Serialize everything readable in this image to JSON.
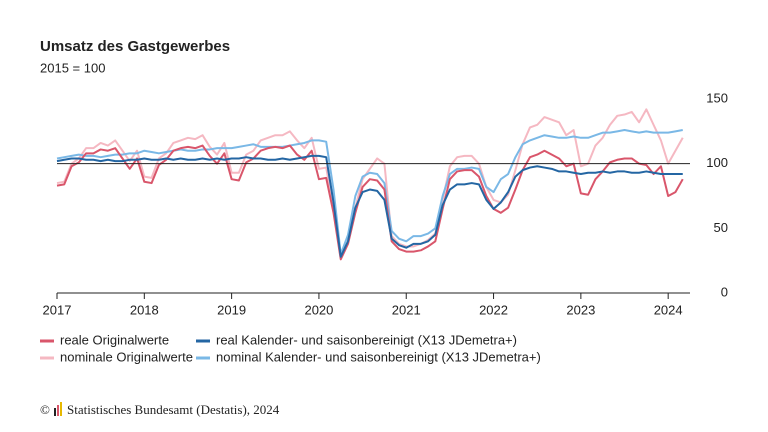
{
  "chart_data": {
    "type": "line",
    "title": "Umsatz des Gastgewerbes",
    "subtitle": "2015 = 100",
    "copyright": "©",
    "source": "Statistisches Bundesamt (Destatis), 2024",
    "xlim": [
      2017,
      2024.25
    ],
    "xticks": [
      2017,
      2018,
      2019,
      2020,
      2021,
      2022,
      2023,
      2024
    ],
    "ylim": [
      0,
      150
    ],
    "yticks": [
      0,
      50,
      100,
      150
    ],
    "reference_line": 100,
    "legend": "bottom",
    "x": [
      2017.0,
      2017.083,
      2017.167,
      2017.25,
      2017.333,
      2017.417,
      2017.5,
      2017.583,
      2017.667,
      2017.75,
      2017.833,
      2017.917,
      2018.0,
      2018.083,
      2018.167,
      2018.25,
      2018.333,
      2018.417,
      2018.5,
      2018.583,
      2018.667,
      2018.75,
      2018.833,
      2018.917,
      2019.0,
      2019.083,
      2019.167,
      2019.25,
      2019.333,
      2019.417,
      2019.5,
      2019.583,
      2019.667,
      2019.75,
      2019.833,
      2019.917,
      2020.0,
      2020.083,
      2020.167,
      2020.25,
      2020.333,
      2020.417,
      2020.5,
      2020.583,
      2020.667,
      2020.75,
      2020.833,
      2020.917,
      2021.0,
      2021.083,
      2021.167,
      2021.25,
      2021.333,
      2021.417,
      2021.5,
      2021.583,
      2021.667,
      2021.75,
      2021.833,
      2021.917,
      2022.0,
      2022.083,
      2022.167,
      2022.25,
      2022.333,
      2022.417,
      2022.5,
      2022.583,
      2022.667,
      2022.75,
      2022.833,
      2022.917,
      2023.0,
      2023.083,
      2023.167,
      2023.25,
      2023.333,
      2023.417,
      2023.5,
      2023.583,
      2023.667,
      2023.75,
      2023.833,
      2023.917,
      2024.0,
      2024.083,
      2024.167
    ],
    "series": [
      {
        "name": "nominale Originalwerte",
        "color": "#f5b8c2",
        "legend_row": 1,
        "legend_col": 0,
        "values": [
          85,
          86,
          100,
          104,
          112,
          112,
          116,
          114,
          118,
          110,
          102,
          110,
          90,
          89,
          104,
          108,
          116,
          118,
          120,
          119,
          122,
          113,
          107,
          116,
          93,
          93,
          107,
          110,
          118,
          120,
          122,
          122,
          125,
          118,
          112,
          120,
          96,
          97,
          66,
          27,
          40,
          66,
          88,
          96,
          104,
          100,
          44,
          38,
          36,
          36,
          38,
          41,
          46,
          72,
          98,
          105,
          106,
          106,
          100,
          82,
          72,
          70,
          76,
          95,
          115,
          128,
          130,
          136,
          134,
          132,
          122,
          126,
          98,
          100,
          114,
          120,
          130,
          137,
          138,
          140,
          132,
          142,
          130,
          118,
          100,
          110,
          120
        ]
      },
      {
        "name": "nominal Kalender- und saisonbereinigt (X13 JDemetra+)",
        "color": "#7ab8e6",
        "legend_row": 1,
        "legend_col": 1,
        "values": [
          104,
          105,
          106,
          107,
          106,
          106,
          105,
          106,
          107,
          107,
          108,
          108,
          110,
          109,
          108,
          109,
          110,
          111,
          110,
          110,
          111,
          111,
          112,
          112,
          112,
          113,
          114,
          115,
          113,
          113,
          113,
          113,
          114,
          115,
          116,
          118,
          118,
          117,
          80,
          30,
          45,
          75,
          90,
          93,
          92,
          85,
          48,
          42,
          40,
          44,
          44,
          46,
          50,
          75,
          92,
          96,
          96,
          97,
          96,
          82,
          78,
          88,
          92,
          105,
          115,
          118,
          120,
          122,
          121,
          120,
          120,
          121,
          120,
          120,
          122,
          124,
          124,
          125,
          126,
          125,
          124,
          125,
          124,
          124,
          124,
          125,
          126
        ]
      },
      {
        "name": "reale Originalwerte",
        "color": "#d9566b",
        "legend_row": 0,
        "legend_col": 0,
        "values": [
          83,
          84,
          98,
          101,
          108,
          108,
          111,
          110,
          112,
          104,
          96,
          104,
          86,
          85,
          99,
          103,
          110,
          112,
          113,
          112,
          114,
          106,
          100,
          108,
          88,
          87,
          101,
          104,
          110,
          112,
          113,
          112,
          114,
          107,
          103,
          110,
          88,
          89,
          62,
          26,
          38,
          62,
          82,
          88,
          87,
          80,
          40,
          34,
          32,
          32,
          33,
          36,
          40,
          65,
          88,
          94,
          95,
          95,
          90,
          75,
          65,
          62,
          66,
          80,
          95,
          105,
          107,
          110,
          107,
          104,
          98,
          100,
          77,
          76,
          88,
          94,
          101,
          103,
          104,
          104,
          100,
          99,
          92,
          98,
          75,
          78,
          88
        ]
      },
      {
        "name": "real Kalender- und saisonbereinigt (X13 JDemetra+)",
        "color": "#2466a3",
        "legend_row": 0,
        "legend_col": 1,
        "values": [
          102,
          103,
          104,
          104,
          103,
          103,
          102,
          103,
          102,
          102,
          103,
          103,
          104,
          103,
          103,
          104,
          103,
          104,
          103,
          103,
          104,
          103,
          104,
          103,
          104,
          104,
          105,
          104,
          104,
          103,
          103,
          104,
          103,
          104,
          105,
          106,
          106,
          105,
          70,
          28,
          40,
          66,
          78,
          80,
          79,
          72,
          42,
          37,
          35,
          38,
          38,
          40,
          45,
          68,
          80,
          84,
          84,
          85,
          84,
          72,
          65,
          70,
          78,
          90,
          95,
          97,
          98,
          97,
          96,
          94,
          94,
          93,
          92,
          93,
          93,
          94,
          93,
          94,
          94,
          93,
          93,
          94,
          93,
          92,
          92,
          92,
          92
        ]
      }
    ]
  }
}
